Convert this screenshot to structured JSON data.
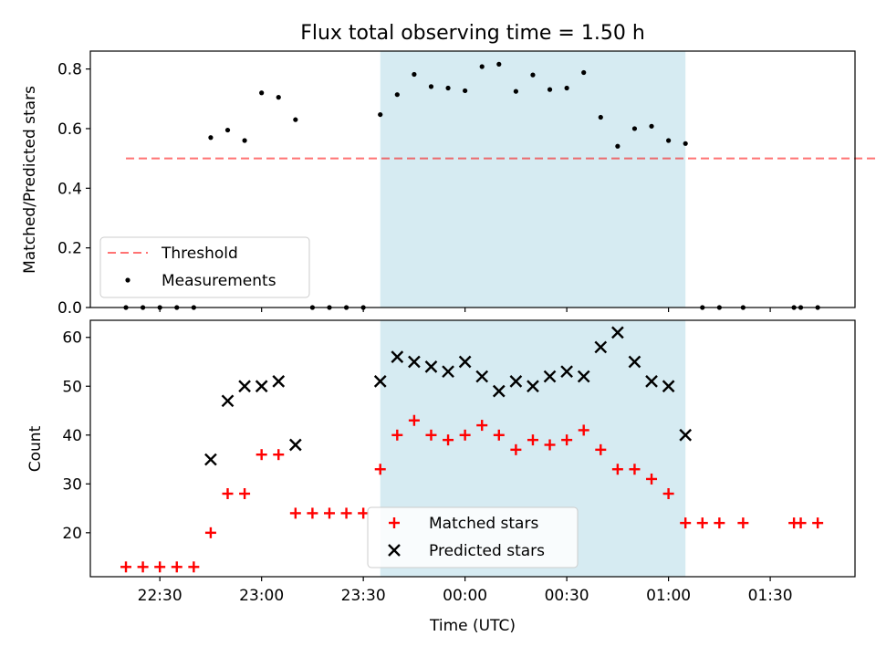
{
  "title": "Flux total observing time = 1.50 h",
  "colors": {
    "shade": "#add8e6",
    "threshold": "#ff0000",
    "measurement": "#000000",
    "matched": "#ff0000",
    "predicted": "#000000"
  },
  "chart_data": [
    {
      "type": "scatter",
      "ylabel": "Matched/Predicted stars",
      "ylim": [
        0,
        0.86
      ],
      "yticks": [
        "0.0",
        "0.2",
        "0.4",
        "0.6",
        "0.8"
      ],
      "legend_position": "lower-left",
      "threshold": {
        "name": "Threshold",
        "value": 0.5,
        "x_range": [
          "22:20",
          "02:44"
        ]
      },
      "shaded_interval": [
        "23:35",
        "01:05"
      ],
      "series": [
        {
          "name": "Measurements",
          "x": [
            "22:20",
            "22:25",
            "22:30",
            "22:35",
            "22:40",
            "22:45",
            "22:50",
            "22:55",
            "23:00",
            "23:05",
            "23:10",
            "23:15",
            "23:20",
            "23:25",
            "23:30",
            "23:35",
            "23:40",
            "23:45",
            "23:50",
            "23:55",
            "00:00",
            "00:05",
            "00:10",
            "00:15",
            "00:20",
            "00:25",
            "00:30",
            "00:35",
            "00:40",
            "00:45",
            "00:50",
            "00:55",
            "01:00",
            "01:05",
            "01:10",
            "01:15",
            "01:22",
            "01:37",
            "01:39",
            "01:44"
          ],
          "y": [
            0,
            0,
            0,
            0,
            0,
            0.57,
            0.595,
            0.56,
            0.72,
            0.705,
            0.63,
            0,
            0,
            0,
            0,
            0.647,
            0.714,
            0.782,
            0.741,
            0.736,
            0.727,
            0.808,
            0.816,
            0.725,
            0.78,
            0.731,
            0.736,
            0.788,
            0.638,
            0.541,
            0.6,
            0.608,
            0.56,
            0.55,
            0,
            0,
            0,
            0,
            0,
            0
          ]
        }
      ]
    },
    {
      "type": "scatter",
      "xlabel": "Time (UTC)",
      "ylabel": "Count",
      "ylim": [
        11,
        63.5
      ],
      "yticks": [
        "20",
        "30",
        "40",
        "50",
        "60"
      ],
      "xlim": [
        "22:09.5",
        "01:55"
      ],
      "xticks": [
        "22:30",
        "23:00",
        "23:30",
        "00:00",
        "00:30",
        "01:00",
        "01:30"
      ],
      "legend_position": "lower-center",
      "shaded_interval": [
        "23:35",
        "01:05"
      ],
      "series": [
        {
          "name": "Matched stars",
          "x": [
            "22:20",
            "22:25",
            "22:30",
            "22:35",
            "22:40",
            "22:45",
            "22:50",
            "22:55",
            "23:00",
            "23:05",
            "23:10",
            "23:15",
            "23:20",
            "23:25",
            "23:30",
            "23:35",
            "23:40",
            "23:45",
            "23:50",
            "23:55",
            "00:00",
            "00:05",
            "00:10",
            "00:15",
            "00:20",
            "00:25",
            "00:30",
            "00:35",
            "00:40",
            "00:45",
            "00:50",
            "00:55",
            "01:00",
            "01:05",
            "01:10",
            "01:15",
            "01:22",
            "01:37",
            "01:39",
            "01:44"
          ],
          "y": [
            13,
            13,
            13,
            13,
            13,
            20,
            28,
            28,
            36,
            36,
            24,
            24,
            24,
            24,
            24,
            33,
            40,
            43,
            40,
            39,
            40,
            42,
            40,
            37,
            39,
            38,
            39,
            41,
            37,
            33,
            33,
            31,
            28,
            22,
            22,
            22,
            22,
            22,
            22,
            22
          ]
        },
        {
          "name": "Predicted stars",
          "x": [
            "22:45",
            "22:50",
            "22:55",
            "23:00",
            "23:05",
            "23:10",
            "23:35",
            "23:40",
            "23:45",
            "23:50",
            "23:55",
            "00:00",
            "00:05",
            "00:10",
            "00:15",
            "00:20",
            "00:25",
            "00:30",
            "00:35",
            "00:40",
            "00:45",
            "00:50",
            "00:55",
            "01:00",
            "01:05"
          ],
          "y": [
            35,
            47,
            50,
            50,
            51,
            38,
            51,
            56,
            55,
            54,
            53,
            55,
            52,
            49,
            51,
            50,
            52,
            53,
            52,
            58,
            61,
            55,
            51,
            50,
            40
          ]
        }
      ]
    }
  ]
}
